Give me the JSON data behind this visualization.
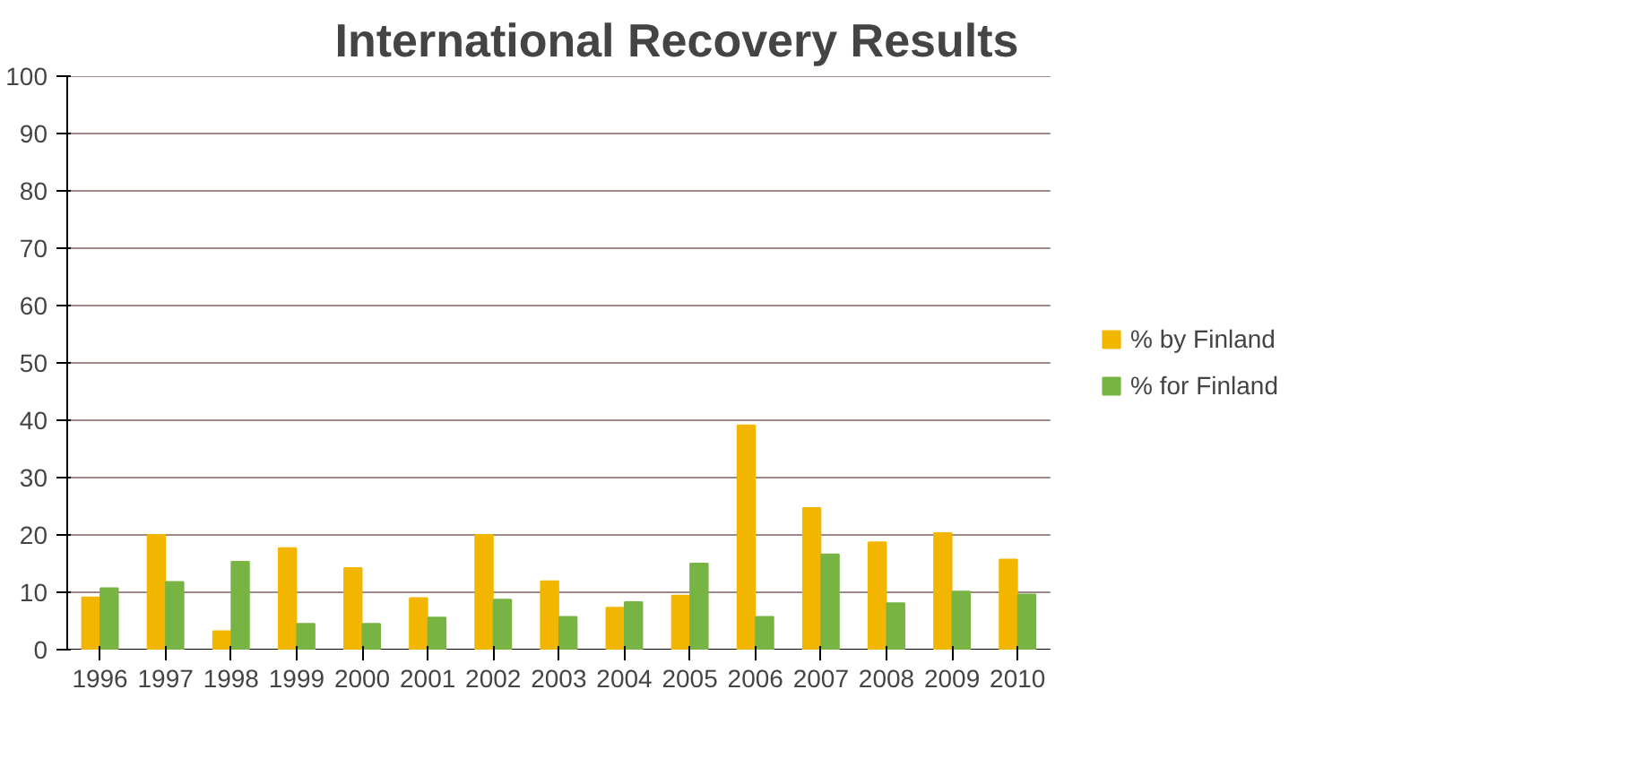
{
  "chart_data": {
    "type": "bar",
    "title": "International Recovery Results",
    "categories": [
      "1996",
      "1997",
      "1998",
      "1999",
      "2000",
      "2001",
      "2002",
      "2003",
      "2004",
      "2005",
      "2006",
      "2007",
      "2008",
      "2009",
      "2010"
    ],
    "series": [
      {
        "name": "% by Finland",
        "color": "#f2b600",
        "values": [
          9.1,
          20,
          3.2,
          17.7,
          14.2,
          9,
          20,
          11.9,
          7.3,
          9.4,
          39.1,
          24.7,
          18.7,
          20.3,
          15.7
        ]
      },
      {
        "name": "% for Finland",
        "color": "#78b443",
        "values": [
          10.7,
          11.8,
          15.3,
          4.5,
          4.5,
          5.6,
          8.7,
          5.7,
          8.3,
          15,
          5.7,
          16.6,
          8.1,
          10.1,
          9.6
        ]
      }
    ],
    "ylim": [
      0,
      100
    ],
    "yticks": [
      0,
      10,
      20,
      30,
      40,
      50,
      60,
      70,
      80,
      90,
      100
    ],
    "grid": "y",
    "legend": "right"
  }
}
